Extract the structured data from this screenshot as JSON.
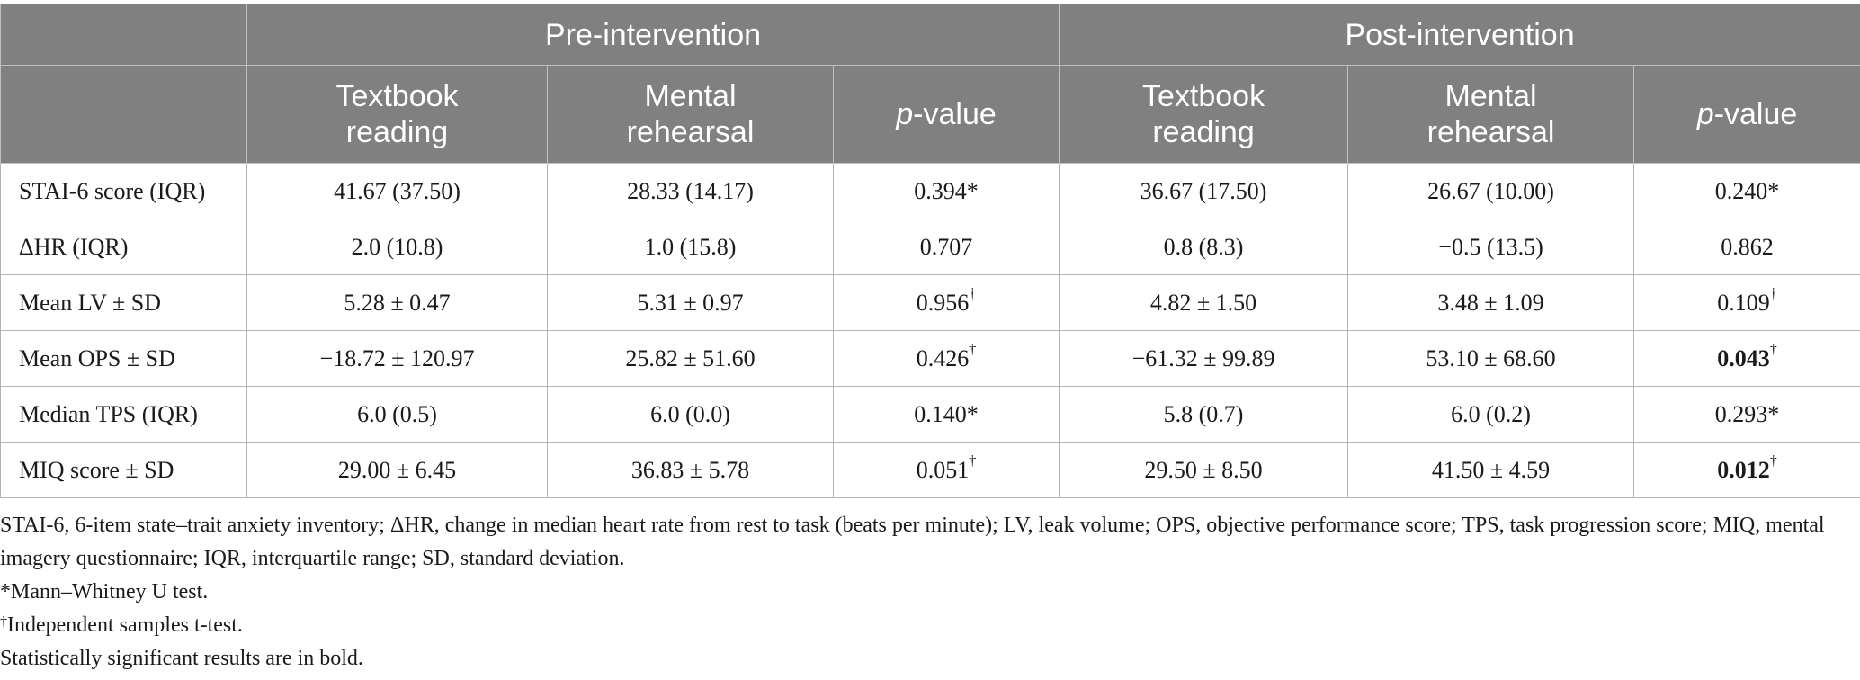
{
  "header": {
    "groups": [
      "Pre-intervention",
      "Post-intervention"
    ],
    "textbook_line1": "Textbook",
    "textbook_line2": "reading",
    "mental_line1": "Mental",
    "mental_line2": "rehearsal",
    "pvalue_p": "p",
    "pvalue_rest": "-value"
  },
  "rows": [
    {
      "label": "STAI-6 score (IQR)",
      "pre_tb": "41.67 (37.50)",
      "pre_mr": "28.33 (14.17)",
      "pre_p": "0.394",
      "pre_p_mark": "*",
      "post_tb": "36.67 (17.50)",
      "post_mr": "26.67 (10.00)",
      "post_p": "0.240",
      "post_p_mark": "*"
    },
    {
      "label": "ΔHR (IQR)",
      "pre_tb": "2.0 (10.8)",
      "pre_mr": "1.0 (15.8)",
      "pre_p": "0.707",
      "pre_p_mark": "",
      "post_tb": "0.8 (8.3)",
      "post_mr": "−0.5 (13.5)",
      "post_p": "0.862",
      "post_p_mark": ""
    },
    {
      "label": "Mean LV ± SD",
      "pre_tb": "5.28 ± 0.47",
      "pre_mr": "5.31 ± 0.97",
      "pre_p": "0.956",
      "pre_p_sup": "†",
      "post_tb": "4.82 ± 1.50",
      "post_mr": "3.48 ± 1.09",
      "post_p": "0.109",
      "post_p_sup": "†"
    },
    {
      "label": "Mean OPS ± SD",
      "pre_tb": "−18.72 ± 120.97",
      "pre_mr": "25.82 ± 51.60",
      "pre_p": "0.426",
      "pre_p_sup": "†",
      "post_tb": "−61.32 ± 99.89",
      "post_mr": "53.10 ± 68.60",
      "post_p": "0.043",
      "post_p_sup": "†"
    },
    {
      "label": "Median TPS (IQR)",
      "pre_tb": "6.0 (0.5)",
      "pre_mr": "6.0 (0.0)",
      "pre_p": "0.140",
      "pre_p_mark": "*",
      "post_tb": "5.8 (0.7)",
      "post_mr": "6.0 (0.2)",
      "post_p": "0.293",
      "post_p_mark": "*"
    },
    {
      "label": "MIQ score ± SD",
      "pre_tb": "29.00 ± 6.45",
      "pre_mr": "36.83 ± 5.78",
      "pre_p": "0.051",
      "pre_p_sup": "†",
      "post_tb": "29.50 ± 8.50",
      "post_mr": "41.50 ± 4.59",
      "post_p": "0.012",
      "post_p_sup": "†"
    }
  ],
  "notes": {
    "abbreviations": "STAI-6, 6-item state–trait anxiety inventory; ΔHR, change in median heart rate from rest to task (beats per minute); LV, leak volume; OPS, objective performance score; TPS, task progression score; MIQ, mental imagery questionnaire; IQR, interquartile range; SD, standard deviation.",
    "mann_whitney": "*Mann–Whitney U test.",
    "dagger_mark": "†",
    "t_test": "Independent samples t-test.",
    "bold_note": "Statistically significant results are in bold."
  }
}
